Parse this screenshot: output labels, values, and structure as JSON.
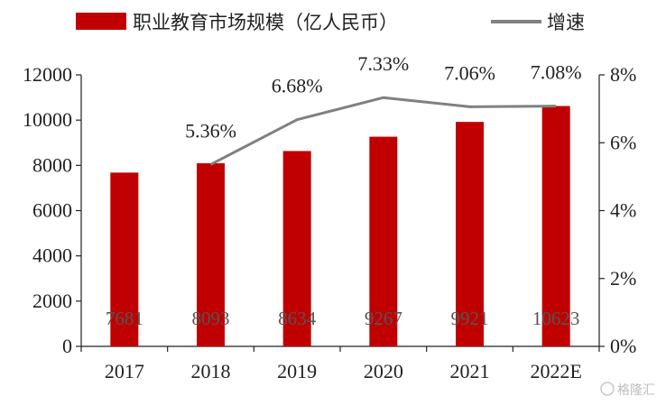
{
  "chart_data": {
    "type": "bar+line",
    "categories": [
      "2017",
      "2018",
      "2019",
      "2020",
      "2021",
      "2022E"
    ],
    "series": [
      {
        "name": "职业教育市场规模（亿人民币）",
        "type": "bar",
        "axis": "left",
        "color": "#c00000",
        "values": [
          7681,
          8093,
          8634,
          9267,
          9921,
          10623
        ],
        "labels": [
          "7681",
          "8093",
          "8634",
          "9267",
          "9921",
          "10623"
        ]
      },
      {
        "name": "增速",
        "type": "line",
        "axis": "right",
        "color": "#808080",
        "x": [
          "2018",
          "2019",
          "2020",
          "2021",
          "2022E"
        ],
        "values": [
          5.36,
          6.68,
          7.33,
          7.06,
          7.08
        ],
        "labels": [
          "5.36%",
          "6.68%",
          "7.33%",
          "7.06%",
          "7.08%"
        ]
      }
    ],
    "y_left": {
      "min": 0,
      "max": 12000,
      "ticks": [
        "0",
        "2000",
        "4000",
        "6000",
        "8000",
        "10000",
        "12000"
      ]
    },
    "y_right": {
      "min": 0,
      "max": 8,
      "ticks": [
        "0%",
        "2%",
        "4%",
        "6%",
        "8%"
      ]
    },
    "legend_position": "top",
    "grid": false
  },
  "watermark": "格隆汇",
  "colors": {
    "bar": "#c00000",
    "line": "#808080",
    "axis": "#222222"
  }
}
